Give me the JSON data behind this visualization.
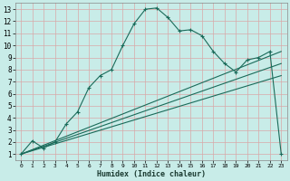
{
  "xlabel": "Humidex (Indice chaleur)",
  "bg_color": "#c8ece8",
  "grid_color": "#d8a8a8",
  "line_color": "#1a6b5a",
  "xlim": [
    -0.5,
    23.5
  ],
  "ylim": [
    0.5,
    13.5
  ],
  "xticks": [
    0,
    1,
    2,
    3,
    4,
    5,
    6,
    7,
    8,
    9,
    10,
    11,
    12,
    13,
    14,
    15,
    16,
    17,
    18,
    19,
    20,
    21,
    22,
    23
  ],
  "yticks": [
    1,
    2,
    3,
    4,
    5,
    6,
    7,
    8,
    9,
    10,
    11,
    12,
    13
  ],
  "curve_x": [
    0,
    1,
    2,
    3,
    4,
    5,
    6,
    7,
    8,
    9,
    10,
    11,
    12,
    13,
    14,
    15,
    16,
    17,
    18,
    19,
    20,
    21,
    22,
    23
  ],
  "curve_y": [
    1,
    2.1,
    1.5,
    2.0,
    3.5,
    4.5,
    6.5,
    7.5,
    8.0,
    10.0,
    11.8,
    13.0,
    13.1,
    12.3,
    11.2,
    11.3,
    10.8,
    9.5,
    8.5,
    7.8,
    8.8,
    9.0,
    9.5,
    1
  ],
  "line1_x": [
    0,
    23
  ],
  "line1_y": [
    1,
    9.5
  ],
  "line2_x": [
    0,
    23
  ],
  "line2_y": [
    1,
    8.5
  ],
  "line3_x": [
    0,
    23
  ],
  "line3_y": [
    1,
    7.5
  ]
}
